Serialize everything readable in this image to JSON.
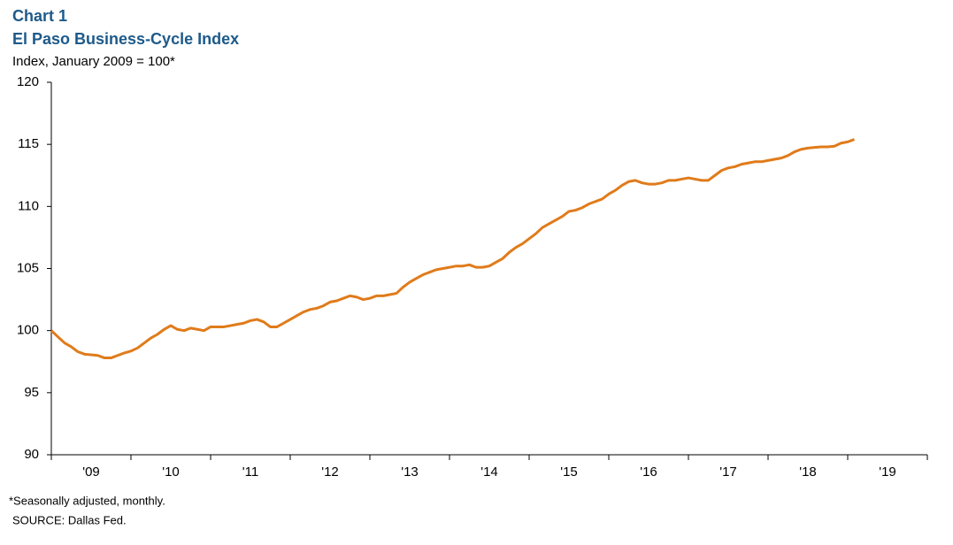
{
  "chart_data": {
    "type": "line",
    "label": "Chart 1",
    "title": "El Paso Business-Cycle Index",
    "subtitle": "Index, January 2009 = 100*",
    "footnote": "*Seasonally adjusted, monthly.",
    "source": "SOURCE:  Dallas Fed.",
    "categories": [
      "'09",
      "'10",
      "'11",
      "'12",
      "'13",
      "'14",
      "'15",
      "'16",
      "'17",
      "'18",
      "'19"
    ],
    "xlim": [
      2009,
      2020
    ],
    "xticks": [
      2009,
      2010,
      2011,
      2012,
      2013,
      2014,
      2015,
      2016,
      2017,
      2018,
      2019,
      2020
    ],
    "ylim": [
      90,
      120
    ],
    "yticks": [
      90,
      95,
      100,
      105,
      110,
      115,
      120
    ],
    "grid": false,
    "x": [
      2009,
      2009.083,
      2009.167,
      2009.25,
      2009.333,
      2009.417,
      2009.5,
      2009.583,
      2009.667,
      2009.75,
      2009.833,
      2009.917,
      2010,
      2010.083,
      2010.167,
      2010.25,
      2010.333,
      2010.417,
      2010.5,
      2010.583,
      2010.667,
      2010.75,
      2010.833,
      2010.917,
      2011,
      2011.083,
      2011.167,
      2011.25,
      2011.333,
      2011.417,
      2011.5,
      2011.583,
      2011.667,
      2011.75,
      2011.833,
      2011.917,
      2012,
      2012.083,
      2012.167,
      2012.25,
      2012.333,
      2012.417,
      2012.5,
      2012.583,
      2012.667,
      2012.75,
      2012.833,
      2012.917,
      2013,
      2013.083,
      2013.167,
      2013.25,
      2013.333,
      2013.417,
      2013.5,
      2013.583,
      2013.667,
      2013.75,
      2013.833,
      2013.917,
      2014,
      2014.083,
      2014.167,
      2014.25,
      2014.333,
      2014.417,
      2014.5,
      2014.583,
      2014.667,
      2014.75,
      2014.833,
      2014.917,
      2015,
      2015.083,
      2015.167,
      2015.25,
      2015.333,
      2015.417,
      2015.5,
      2015.583,
      2015.667,
      2015.75,
      2015.833,
      2015.917,
      2016,
      2016.083,
      2016.167,
      2016.25,
      2016.333,
      2016.417,
      2016.5,
      2016.583,
      2016.667,
      2016.75,
      2016.833,
      2016.917,
      2017,
      2017.083,
      2017.167,
      2017.25,
      2017.333,
      2017.417,
      2017.5,
      2017.583,
      2017.667,
      2017.75,
      2017.833,
      2017.917,
      2018,
      2018.083,
      2018.167,
      2018.25,
      2018.333,
      2018.417,
      2018.5,
      2018.583,
      2018.667,
      2018.75,
      2018.833,
      2018.917,
      2019,
      2019.083
    ],
    "series": [
      {
        "color": "#e07b1a",
        "values": [
          100.0,
          99.5,
          99.0,
          98.7,
          98.3,
          98.1,
          98.05,
          98.0,
          97.8,
          97.8,
          98.0,
          98.2,
          98.35,
          98.6,
          99.0,
          99.4,
          99.7,
          100.1,
          100.4,
          100.1,
          100.0,
          100.2,
          100.1,
          100.0,
          100.3,
          100.3,
          100.3,
          100.4,
          100.5,
          100.6,
          100.8,
          100.9,
          100.7,
          100.3,
          100.3,
          100.6,
          100.9,
          101.2,
          101.5,
          101.7,
          101.8,
          102.0,
          102.3,
          102.4,
          102.6,
          102.8,
          102.7,
          102.5,
          102.6,
          102.8,
          102.8,
          102.9,
          103.0,
          103.5,
          103.9,
          104.2,
          104.5,
          104.7,
          104.9,
          105.0,
          105.1,
          105.2,
          105.2,
          105.3,
          105.1,
          105.1,
          105.2,
          105.5,
          105.8,
          106.3,
          106.7,
          107.0,
          107.4,
          107.8,
          108.3,
          108.6,
          108.9,
          109.2,
          109.6,
          109.7,
          109.9,
          110.2,
          110.4,
          110.6,
          111.0,
          111.3,
          111.7,
          112.0,
          112.1,
          111.9,
          111.8,
          111.8,
          111.9,
          112.1,
          112.1,
          112.2,
          112.3,
          112.2,
          112.1,
          112.1,
          112.5,
          112.9,
          113.1,
          113.2,
          113.4,
          113.5,
          113.6,
          113.6,
          113.7,
          113.8,
          113.9,
          114.1,
          114.4,
          114.6,
          114.7,
          114.75,
          114.8,
          114.8,
          114.85,
          115.1,
          115.2,
          115.4
        ]
      }
    ]
  }
}
